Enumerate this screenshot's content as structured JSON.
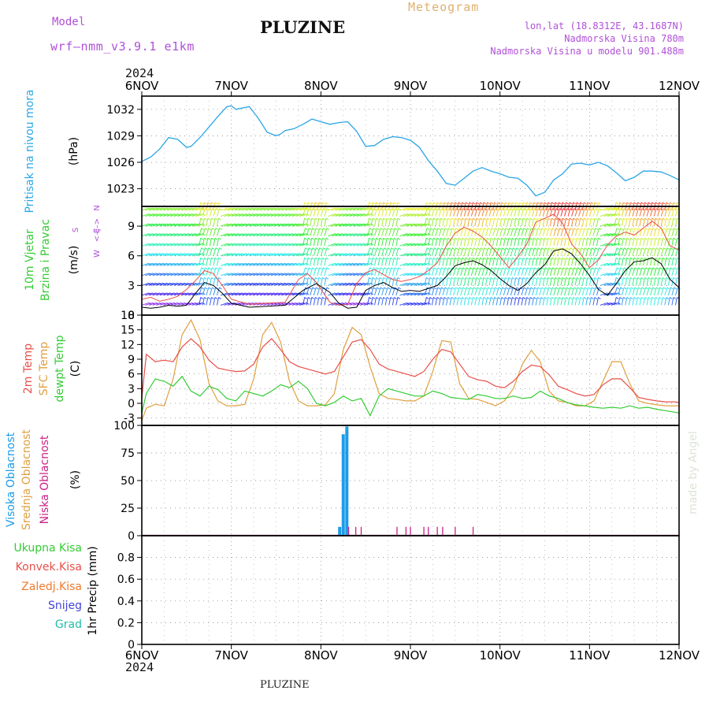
{
  "header": {
    "model_label": "Model",
    "model_name": "wrf–nmm_v3.9.1  e1km",
    "station": "PLUZINE",
    "meteogram": "Meteogram",
    "lonlat": "lon,lat (18.8312E, 43.1687N)",
    "altitude": "Nadmorska Visina 780m",
    "model_altitude": "Nadmorska Visina u modelu 901.488m",
    "year": "2024",
    "footer_station": "PLUZINE",
    "watermark": "made by Angel"
  },
  "colors": {
    "pressure": "#2aa6e6",
    "temp2m": "#e8504a",
    "sfc": "#e0a040",
    "dewpoint": "#33cc33",
    "high_cloud": "#1e9be8",
    "mid_cloud": "#e0a040",
    "low_cloud": "#cc2288",
    "purple": "#b050d8",
    "gust": "#e8504a",
    "speed": "#000000"
  },
  "panels": {
    "pressure": {
      "label": "Pritisak na nivou mora",
      "unit": "(hPa)"
    },
    "wind": {
      "label1": "10m Vjetar",
      "label2": "Brzina i Pravac",
      "unit": "(m/s)",
      "compass_n": "N",
      "compass_e": "E",
      "compass_w": "W",
      "compass_s": "S"
    },
    "temp": {
      "label1": "2m Temp",
      "label2": "SFC Temp",
      "label3": "dewpt Temp",
      "unit": "(C)"
    },
    "cloud": {
      "label1": "Visoka Oblacnost",
      "label2": "Srednja Oblacnost",
      "label3": "Niska Oblacnost",
      "unit": "(%)"
    },
    "precip": {
      "label1": "Ukupna Kisa",
      "label2": "Konvek.Kisa",
      "label3": "Zaledj.Kisa",
      "label4": "Snijeg",
      "label5": "Grad",
      "unit": "1hr Precip (mm)"
    }
  },
  "chart_data": {
    "type": "meteogram",
    "x_ticks": [
      "6NOV",
      "7NOV",
      "8NOV",
      "9NOV",
      "10NOV",
      "11NOV",
      "12NOV"
    ],
    "x_range_days": [
      0,
      6
    ],
    "pressure": {
      "type": "line",
      "ylim": [
        1021,
        1033.5
      ],
      "yticks": [
        1023,
        1026,
        1029,
        1032
      ],
      "x": [
        0,
        0.1,
        0.2,
        0.3,
        0.4,
        0.5,
        0.55,
        0.65,
        0.75,
        0.85,
        0.95,
        1.0,
        1.05,
        1.1,
        1.2,
        1.3,
        1.4,
        1.5,
        1.55,
        1.6,
        1.7,
        1.8,
        1.9,
        2.0,
        2.1,
        2.2,
        2.3,
        2.4,
        2.5,
        2.6,
        2.7,
        2.8,
        2.9,
        3.0,
        3.1,
        3.2,
        3.3,
        3.4,
        3.5,
        3.6,
        3.7,
        3.8,
        3.9,
        4.0,
        4.1,
        4.2,
        4.3,
        4.4,
        4.5,
        4.6,
        4.7,
        4.8,
        4.9,
        5.0,
        5.1,
        5.2,
        5.3,
        5.4,
        5.5,
        5.6,
        5.7,
        5.8,
        5.9,
        6.0
      ],
      "values": [
        1026.1,
        1026.6,
        1027.5,
        1028.8,
        1028.6,
        1027.7,
        1027.8,
        1028.8,
        1030.0,
        1031.2,
        1032.3,
        1032.4,
        1032.0,
        1032.1,
        1032.3,
        1031.0,
        1029.4,
        1029.0,
        1029.2,
        1029.6,
        1029.8,
        1030.3,
        1030.9,
        1030.6,
        1030.3,
        1030.5,
        1030.6,
        1029.5,
        1027.8,
        1027.9,
        1028.6,
        1028.9,
        1028.8,
        1028.5,
        1027.7,
        1026.2,
        1025.0,
        1023.6,
        1023.4,
        1024.2,
        1025.0,
        1025.4,
        1025.0,
        1024.7,
        1024.3,
        1024.2,
        1023.4,
        1022.2,
        1022.6,
        1024.0,
        1024.7,
        1025.8,
        1025.9,
        1025.7,
        1026.0,
        1025.6,
        1024.8,
        1023.9,
        1024.3,
        1025.0,
        1025.0,
        1024.9,
        1024.5,
        1024.0
      ]
    },
    "wind": {
      "type": "line",
      "ylim": [
        0,
        11
      ],
      "yticks": [
        0,
        3,
        6,
        9
      ],
      "x": [
        0,
        0.1,
        0.2,
        0.3,
        0.4,
        0.5,
        0.6,
        0.7,
        0.8,
        0.9,
        1.0,
        1.2,
        1.4,
        1.6,
        1.8,
        1.95,
        2.1,
        2.2,
        2.3,
        2.4,
        2.5,
        2.6,
        2.7,
        2.8,
        2.9,
        3.0,
        3.1,
        3.2,
        3.3,
        3.4,
        3.5,
        3.6,
        3.7,
        3.8,
        3.9,
        4.0,
        4.1,
        4.2,
        4.3,
        4.4,
        4.5,
        4.6,
        4.7,
        4.8,
        4.9,
        5.0,
        5.1,
        5.2,
        5.3,
        5.4,
        5.5,
        5.6,
        5.7,
        5.8,
        5.9,
        6.0
      ],
      "speed": [
        0.8,
        0.7,
        0.8,
        1.0,
        0.9,
        1.0,
        2.2,
        3.3,
        3.0,
        2.2,
        1.2,
        0.8,
        0.9,
        1.0,
        2.5,
        3.2,
        2.3,
        1.2,
        0.7,
        0.8,
        2.5,
        3.0,
        3.3,
        2.8,
        2.4,
        2.5,
        2.4,
        2.7,
        3.0,
        3.9,
        5.0,
        5.3,
        5.5,
        5.1,
        4.5,
        3.7,
        3.0,
        2.5,
        3.2,
        4.3,
        5.1,
        6.5,
        6.7,
        6.2,
        5.2,
        4.0,
        2.6,
        2.0,
        3.2,
        4.5,
        5.4,
        5.5,
        5.8,
        5.2,
        3.6,
        2.8
      ],
      "gust_x": [
        0,
        0.1,
        0.2,
        0.3,
        0.4,
        0.5,
        0.6,
        0.7,
        0.8,
        0.9,
        1.0,
        1.2,
        1.4,
        1.6,
        1.75,
        1.85,
        1.95,
        2.1,
        2.2,
        2.3,
        2.4,
        2.5,
        2.6,
        2.7,
        2.8,
        2.9,
        3.0,
        3.1,
        3.2,
        3.3,
        3.4,
        3.5,
        3.6,
        3.7,
        3.8,
        3.9,
        4.0,
        4.1,
        4.2,
        4.3,
        4.4,
        4.5,
        4.6,
        4.7,
        4.8,
        4.9,
        5.0,
        5.1,
        5.2,
        5.3,
        5.4,
        5.5,
        5.6,
        5.7,
        5.8,
        5.9,
        6.0
      ],
      "gust": [
        1.6,
        1.8,
        1.4,
        1.6,
        1.9,
        2.6,
        3.5,
        4.5,
        4.2,
        3.0,
        1.6,
        1.1,
        1.2,
        1.3,
        3.6,
        4.2,
        3.3,
        1.3,
        1.0,
        1.1,
        3.2,
        4.3,
        4.6,
        4.1,
        3.6,
        3.4,
        3.6,
        3.9,
        4.5,
        5.3,
        7.0,
        8.3,
        8.9,
        8.5,
        7.9,
        7.0,
        5.9,
        4.8,
        5.9,
        7.2,
        9.4,
        9.8,
        10.2,
        9.3,
        7.2,
        6.2,
        4.8,
        5.6,
        7.1,
        8.0,
        8.4,
        8.1,
        8.8,
        9.5,
        8.8,
        7.0,
        6.6
      ]
    },
    "temperature": {
      "type": "line",
      "ylim": [
        -4.5,
        18
      ],
      "yticks": [
        -3,
        0,
        3,
        6,
        9,
        12,
        15,
        18
      ],
      "x": [
        0,
        0.05,
        0.15,
        0.25,
        0.35,
        0.45,
        0.55,
        0.65,
        0.75,
        0.85,
        0.95,
        1.05,
        1.15,
        1.25,
        1.35,
        1.45,
        1.55,
        1.65,
        1.75,
        1.85,
        1.95,
        2.05,
        2.15,
        2.25,
        2.35,
        2.45,
        2.55,
        2.65,
        2.75,
        2.85,
        2.95,
        3.05,
        3.15,
        3.25,
        3.35,
        3.45,
        3.55,
        3.65,
        3.75,
        3.85,
        3.95,
        4.05,
        4.15,
        4.25,
        4.35,
        4.45,
        4.55,
        4.65,
        4.75,
        4.85,
        4.95,
        5.05,
        5.15,
        5.25,
        5.35,
        5.45,
        5.55,
        5.65,
        5.75,
        5.85,
        5.95,
        6.0
      ],
      "temp2m": [
        1.0,
        10.0,
        8.5,
        8.8,
        8.5,
        11.5,
        13.2,
        11.5,
        8.8,
        7.2,
        6.8,
        6.5,
        6.6,
        8.0,
        11.5,
        13.2,
        11.0,
        8.5,
        7.5,
        7.0,
        6.5,
        6.0,
        6.5,
        9.5,
        12.5,
        13.0,
        11.0,
        8.0,
        7.0,
        6.5,
        6.0,
        5.5,
        6.5,
        9.0,
        11.0,
        10.5,
        8.0,
        5.5,
        4.8,
        4.5,
        3.5,
        3.2,
        4.5,
        6.5,
        7.8,
        7.5,
        5.8,
        3.5,
        2.8,
        2.0,
        1.5,
        1.8,
        3.8,
        5.0,
        5.0,
        3.2,
        1.2,
        0.8,
        0.5,
        0.3,
        0.3,
        0.2
      ],
      "sfc": [
        -3.5,
        -1.0,
        -0.2,
        -0.5,
        5.0,
        14.0,
        17.0,
        13.0,
        4.0,
        0.5,
        -0.5,
        -0.5,
        -0.2,
        5.0,
        14.0,
        16.5,
        12.5,
        4.5,
        0.5,
        -0.5,
        -0.5,
        -0.3,
        2.0,
        11.0,
        15.5,
        14.0,
        7.5,
        2.0,
        1.0,
        0.8,
        0.5,
        0.5,
        1.5,
        6.5,
        12.8,
        12.5,
        4.0,
        1.0,
        0.8,
        0.2,
        -0.5,
        0.5,
        3.0,
        8.0,
        10.8,
        8.5,
        2.5,
        0.5,
        0.2,
        -0.5,
        -0.5,
        0.5,
        4.5,
        8.5,
        8.5,
        4.0,
        0.5,
        0.0,
        -0.3,
        -0.5,
        -0.5,
        -0.5
      ],
      "dewpoint": [
        -2.0,
        2.0,
        5.0,
        4.5,
        3.5,
        5.5,
        2.5,
        1.5,
        3.5,
        2.8,
        1.0,
        0.5,
        2.5,
        2.0,
        1.5,
        2.5,
        3.8,
        3.2,
        4.5,
        3.0,
        0.0,
        -0.5,
        0.2,
        1.5,
        0.5,
        1.0,
        -2.5,
        1.5,
        3.0,
        2.5,
        2.0,
        1.5,
        1.5,
        2.5,
        2.0,
        1.2,
        1.0,
        0.8,
        1.8,
        1.5,
        1.0,
        1.0,
        1.5,
        1.0,
        1.2,
        2.5,
        1.5,
        1.0,
        0.2,
        -0.3,
        -0.5,
        -0.8,
        -1.0,
        -0.8,
        -1.0,
        -0.5,
        -1.0,
        -0.8,
        -1.2,
        -1.5,
        -1.8,
        -2.0
      ]
    },
    "clouds": {
      "type": "bar",
      "ylim": [
        0,
        100
      ],
      "yticks": [
        0,
        25,
        50,
        75,
        100
      ],
      "high_x": [
        2.21,
        2.25,
        2.29
      ],
      "high_values": [
        8,
        92,
        99
      ],
      "low_x": [
        2.31,
        2.39,
        2.45,
        2.85,
        2.95,
        3.0,
        3.15,
        3.2,
        3.3,
        3.36,
        3.5,
        3.7
      ],
      "low_values": [
        8,
        8,
        8,
        8,
        8,
        8,
        8,
        8,
        8,
        8,
        8,
        8
      ]
    },
    "precip": {
      "type": "bar",
      "ylim": [
        0,
        1
      ],
      "yticks": [
        0,
        0.2,
        0.4,
        0.6,
        0.8
      ],
      "values": []
    }
  }
}
